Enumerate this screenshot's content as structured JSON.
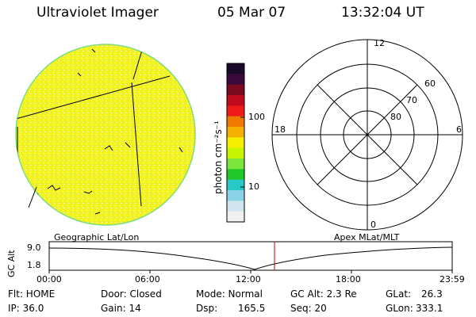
{
  "header": {
    "title": "Ultraviolet Imager",
    "date": "05 Mar 07",
    "time": "13:32:04 UT"
  },
  "colorbar": {
    "unit_label": "photon cm⁻²s⁻¹",
    "ticks": [
      "100",
      "10"
    ],
    "colors": [
      "#1a0a2a",
      "#3a0a3a",
      "#7a0a1e",
      "#c00a1e",
      "#ef1a1a",
      "#f07a00",
      "#f5b000",
      "#f5f000",
      "#c8f500",
      "#7ae63a",
      "#1ec82a",
      "#28c8c8",
      "#8ad2e6",
      "#cfe6f0",
      "#f0f0f0"
    ]
  },
  "earth_image": {
    "fill": "#f2f21e",
    "limb": "#7fdc7f"
  },
  "polar_grid": {
    "mlt_labels": {
      "top": "12",
      "left": "18",
      "right": "6",
      "bottom": "0"
    },
    "lat_labels": [
      "60",
      "70",
      "80"
    ]
  },
  "timeline": {
    "y_axis_label": "GC Alt",
    "y_ticks": [
      "9.0",
      "1.8"
    ],
    "left_title": "Geographic Lat/Lon",
    "right_title": "Apex MLat/MLT",
    "x_ticks": [
      "00:00",
      "06:00",
      "12:00",
      "18:00",
      "23:59"
    ],
    "marker_color": "#c00000"
  },
  "status": {
    "flt": "Flt: HOME",
    "ip": "IP: 36.0",
    "door": "Door: Closed",
    "gain": "Gain: 14",
    "mode": "Mode: Normal",
    "dsp": "Dsp:",
    "dsp_value": "165.5",
    "gc_alt": "GC Alt: 2.3 Re",
    "seq": "Seq: 20",
    "glat": "GLat:",
    "glat_value": "26.3",
    "glon": "GLon:",
    "glon_value": "333.1"
  }
}
